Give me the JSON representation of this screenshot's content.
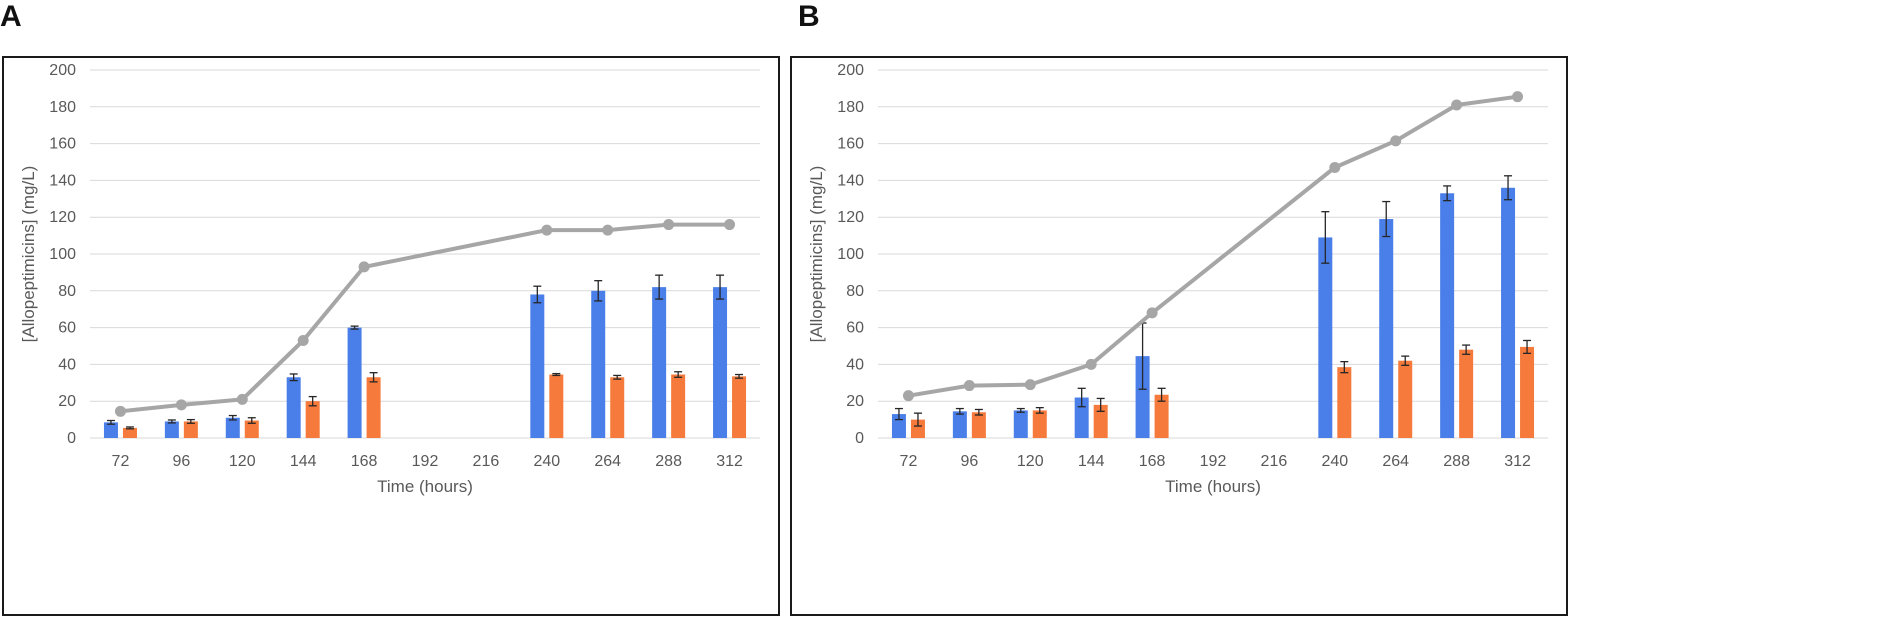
{
  "panels": [
    {
      "letter": "A",
      "chart_data": {
        "type": "bar",
        "xlabel": "Time (hours)",
        "ylabel": "[Allopeptimicins] (mg/L)",
        "ylim": [
          0,
          200
        ],
        "yticks": [
          0,
          20,
          40,
          60,
          80,
          100,
          120,
          140,
          160,
          180,
          200
        ],
        "grid": true,
        "legend": "none",
        "categories": [
          "72",
          "96",
          "120",
          "144",
          "168",
          "192",
          "216",
          "240",
          "264",
          "288",
          "312"
        ],
        "series": [
          {
            "type": "bar",
            "color": "#4a7fea",
            "values": [
              8.5,
              9,
              11,
              33,
              60,
              null,
              null,
              78,
              80,
              82,
              82
            ],
            "errors": [
              1,
              0.8,
              1.2,
              1.8,
              0.8,
              null,
              null,
              4.5,
              5.5,
              6.5,
              6.5
            ]
          },
          {
            "type": "bar",
            "color": "#f57a3b",
            "values": [
              5.5,
              9,
              9.5,
              20,
              33,
              null,
              null,
              34.5,
              33,
              34.5,
              33.5
            ],
            "errors": [
              0.5,
              1,
              1.5,
              2.5,
              2.5,
              null,
              null,
              0.5,
              1,
              1.5,
              1
            ]
          },
          {
            "type": "line",
            "color": "#a6a6a6",
            "values": [
              14.5,
              18,
              21,
              53,
              93,
              null,
              null,
              113,
              113,
              116,
              116
            ]
          }
        ]
      }
    },
    {
      "letter": "B",
      "chart_data": {
        "type": "bar",
        "xlabel": "Time (hours)",
        "ylabel": "[Allopeptimicins] (mg/L)",
        "ylim": [
          0,
          200
        ],
        "yticks": [
          0,
          20,
          40,
          60,
          80,
          100,
          120,
          140,
          160,
          180,
          200
        ],
        "grid": true,
        "legend": "none",
        "categories": [
          "72",
          "96",
          "120",
          "144",
          "168",
          "192",
          "216",
          "240",
          "264",
          "288",
          "312"
        ],
        "series": [
          {
            "type": "bar",
            "color": "#4a7fea",
            "values": [
              13,
              14.5,
              15,
              22,
              44.5,
              null,
              null,
              109,
              119,
              133,
              136
            ],
            "errors": [
              3,
              1.5,
              1,
              5,
              18,
              null,
              null,
              14,
              9.5,
              4,
              6.5
            ]
          },
          {
            "type": "bar",
            "color": "#f57a3b",
            "values": [
              10,
              14,
              15,
              18,
              23.5,
              null,
              null,
              38.5,
              42,
              48,
              49.5
            ],
            "errors": [
              3.5,
              1.5,
              1.5,
              3.5,
              3.5,
              null,
              null,
              3,
              2.5,
              2.5,
              3.5
            ]
          },
          {
            "type": "line",
            "color": "#a6a6a6",
            "values": [
              23,
              28.5,
              29,
              40,
              68,
              null,
              null,
              147,
              161.5,
              181,
              185.5
            ]
          }
        ]
      }
    }
  ]
}
